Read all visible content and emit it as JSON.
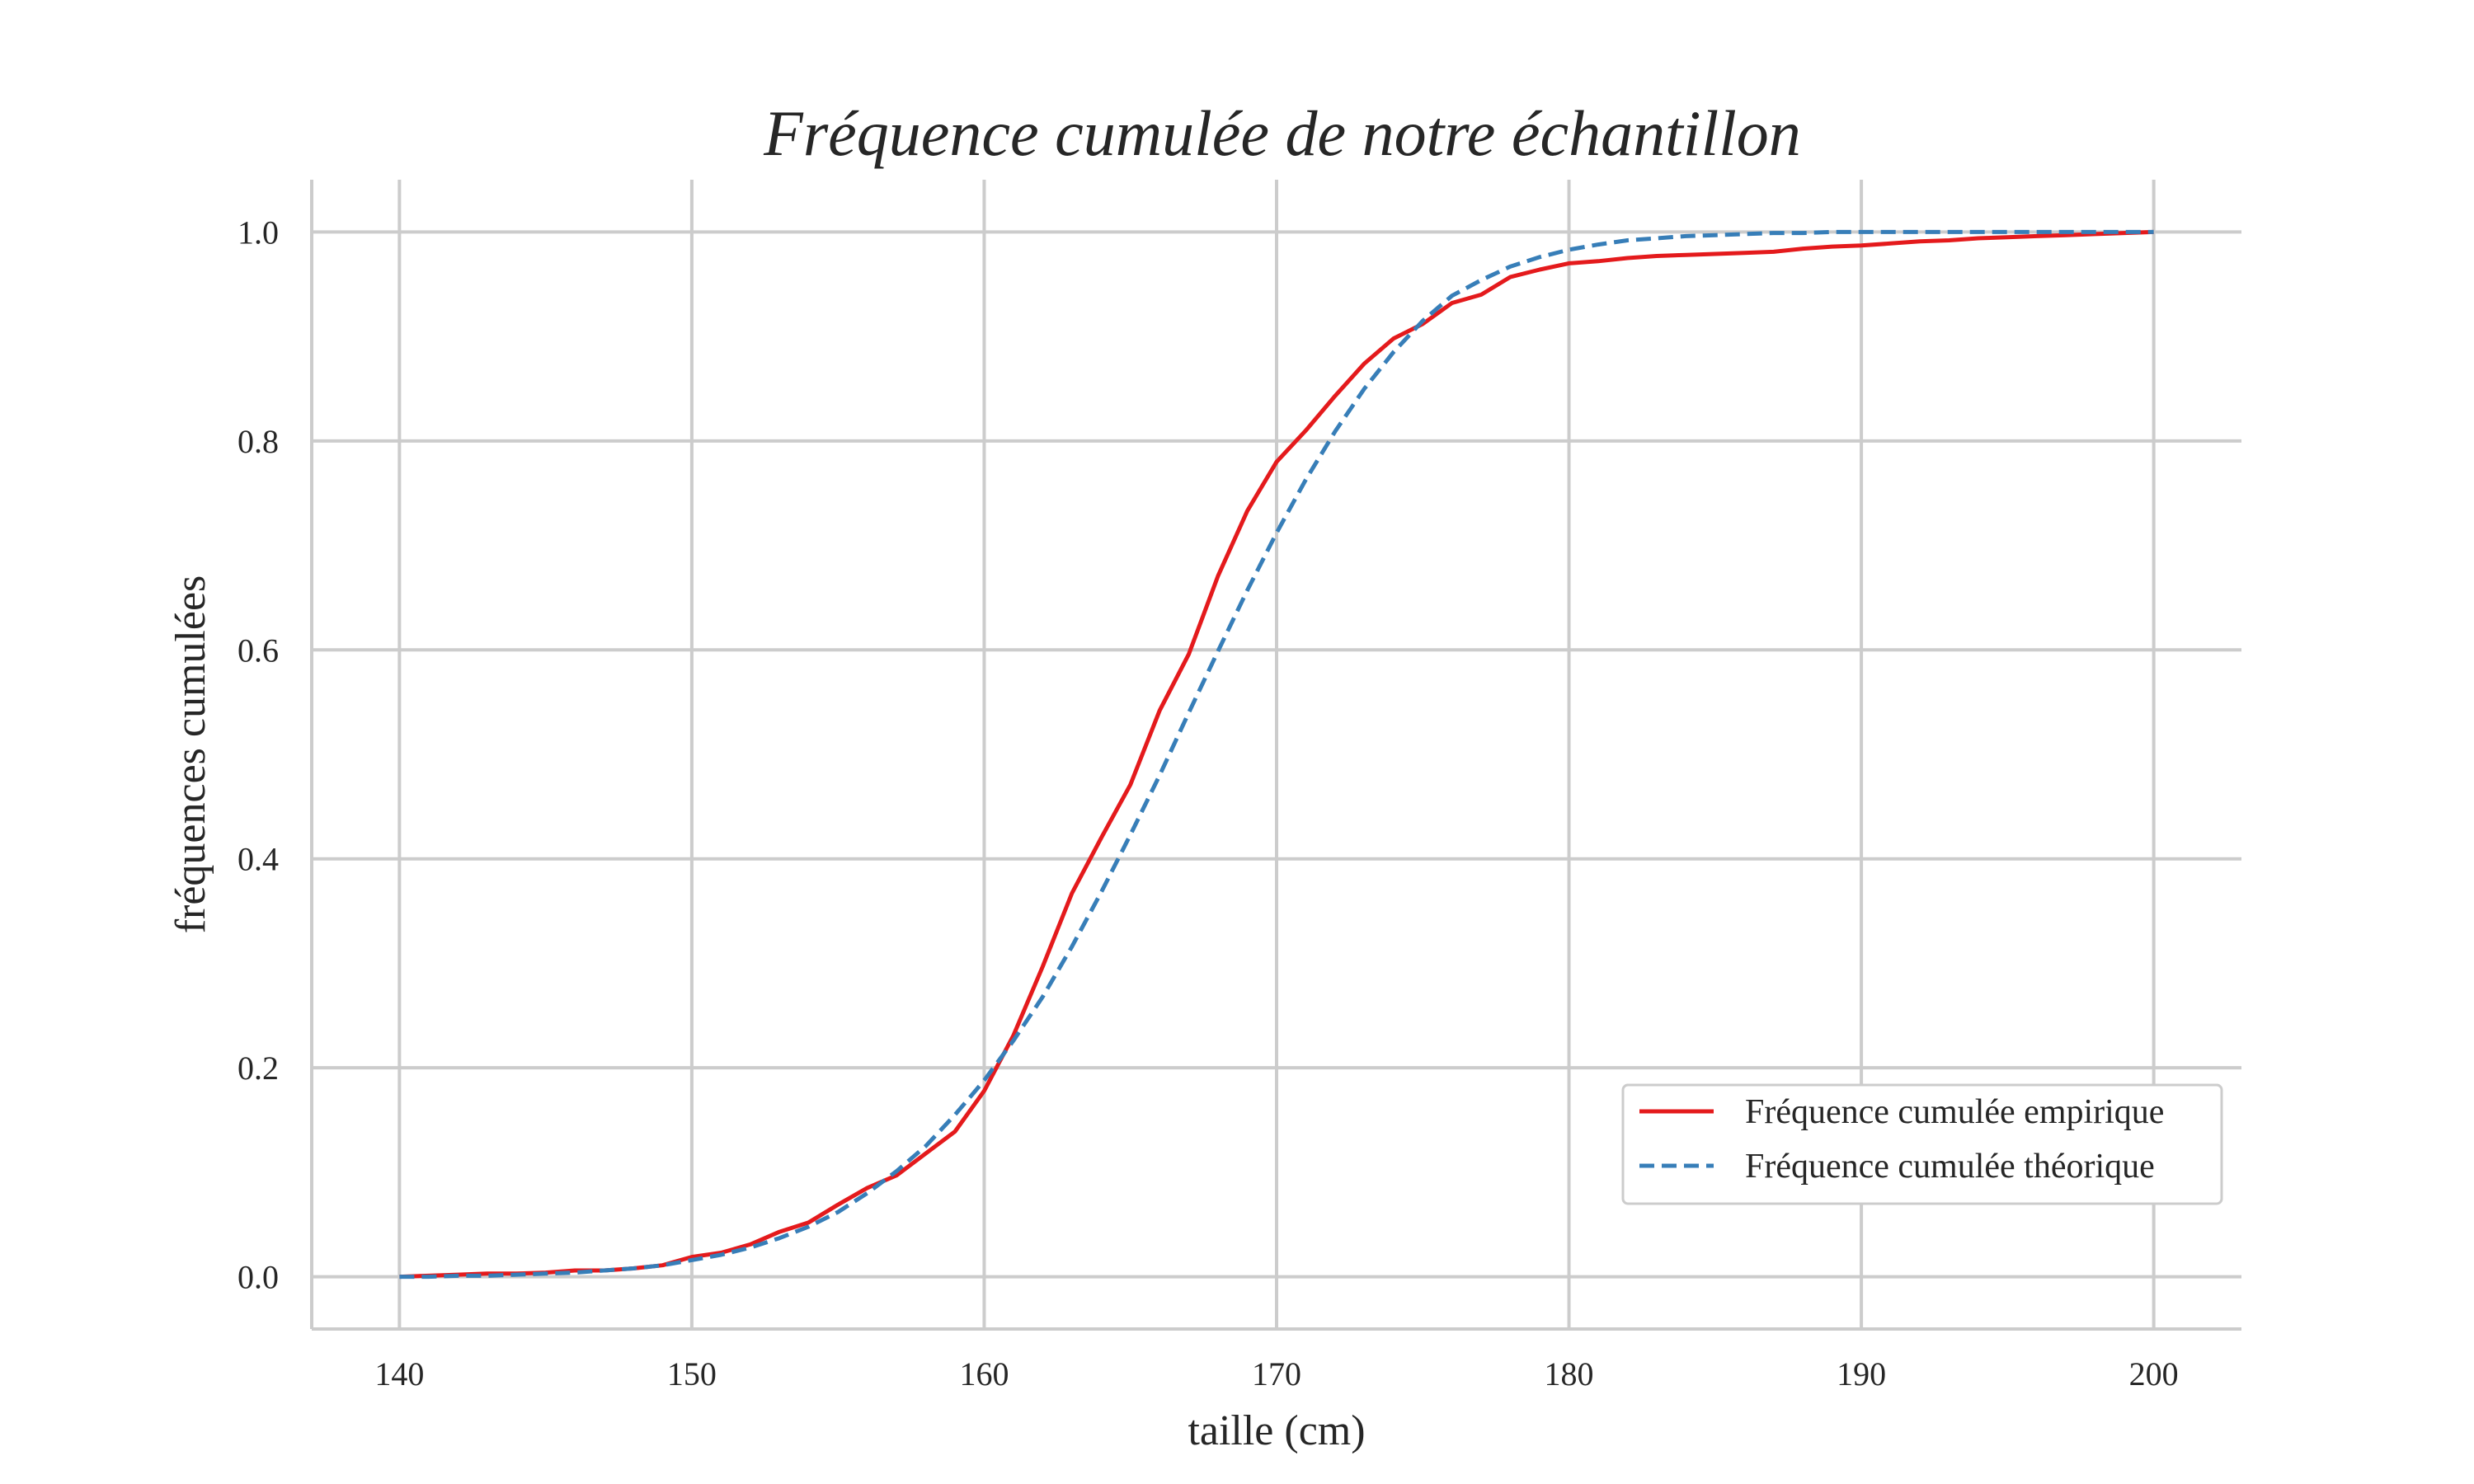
{
  "chart_data": {
    "type": "line",
    "title": "Fréquence cumulée de notre échantillon",
    "xlabel": "taille (cm)",
    "ylabel": "fréquences cumulées",
    "xlim": [
      137,
      203
    ],
    "ylim": [
      -0.05,
      1.05
    ],
    "xticks": [
      140,
      150,
      160,
      170,
      180,
      190,
      200
    ],
    "yticks": [
      0.0,
      0.2,
      0.4,
      0.6,
      0.8,
      1.0
    ],
    "xtick_labels": [
      "140",
      "150",
      "160",
      "170",
      "180",
      "190",
      "200"
    ],
    "ytick_labels": [
      "0.0",
      "0.2",
      "0.4",
      "0.6",
      "0.8",
      "1.0"
    ],
    "grid": true,
    "legend_position": "lower-right",
    "series": [
      {
        "name": "Fréquence cumulée empirique",
        "color": "#e41a1c",
        "style": "solid",
        "x": [
          140,
          141,
          142,
          143,
          144,
          145,
          146,
          147,
          148,
          149,
          150,
          151,
          152,
          153,
          154,
          155,
          156,
          157,
          158,
          159,
          160,
          161,
          162,
          163,
          164,
          165,
          166,
          167,
          168,
          169,
          170,
          171,
          172,
          173,
          174,
          175,
          176,
          177,
          178,
          179,
          180,
          181,
          182,
          183,
          184,
          185,
          186,
          187,
          188,
          189,
          190,
          191,
          192,
          193,
          194,
          195,
          196,
          197,
          198,
          199,
          200
        ],
        "y": [
          0.0,
          0.001,
          0.002,
          0.003,
          0.003,
          0.004,
          0.006,
          0.006,
          0.008,
          0.011,
          0.019,
          0.023,
          0.031,
          0.043,
          0.052,
          0.069,
          0.085,
          0.097,
          0.118,
          0.139,
          0.178,
          0.231,
          0.297,
          0.367,
          0.42,
          0.471,
          0.542,
          0.596,
          0.671,
          0.733,
          0.78,
          0.81,
          0.843,
          0.874,
          0.898,
          0.912,
          0.932,
          0.94,
          0.957,
          0.964,
          0.97,
          0.972,
          0.975,
          0.977,
          0.978,
          0.979,
          0.98,
          0.981,
          0.984,
          0.986,
          0.987,
          0.989,
          0.991,
          0.992,
          0.994,
          0.995,
          0.996,
          0.997,
          0.998,
          0.999,
          1.0
        ]
      },
      {
        "name": "Fréquence cumulée théorique",
        "color": "#377eb8",
        "style": "dashed",
        "x": [
          140,
          141,
          142,
          143,
          144,
          145,
          146,
          147,
          148,
          149,
          150,
          151,
          152,
          153,
          154,
          155,
          156,
          157,
          158,
          159,
          160,
          161,
          162,
          163,
          164,
          165,
          166,
          167,
          168,
          169,
          170,
          171,
          172,
          173,
          174,
          175,
          176,
          177,
          178,
          179,
          180,
          181,
          182,
          183,
          184,
          185,
          186,
          187,
          188,
          189,
          190,
          191,
          192,
          193,
          194,
          195,
          196,
          197,
          198,
          199,
          200
        ],
        "y": [
          0.0,
          0.0,
          0.001,
          0.001,
          0.002,
          0.003,
          0.004,
          0.006,
          0.008,
          0.011,
          0.016,
          0.021,
          0.028,
          0.037,
          0.048,
          0.062,
          0.08,
          0.101,
          0.125,
          0.155,
          0.188,
          0.226,
          0.268,
          0.316,
          0.368,
          0.423,
          0.48,
          0.54,
          0.599,
          0.657,
          0.712,
          0.763,
          0.809,
          0.85,
          0.885,
          0.915,
          0.939,
          0.954,
          0.967,
          0.976,
          0.983,
          0.988,
          0.992,
          0.994,
          0.996,
          0.997,
          0.998,
          0.999,
          0.999,
          1.0,
          1.0,
          1.0,
          1.0,
          1.0,
          1.0,
          1.0,
          1.0,
          1.0,
          1.0,
          1.0,
          1.0
        ]
      }
    ]
  }
}
